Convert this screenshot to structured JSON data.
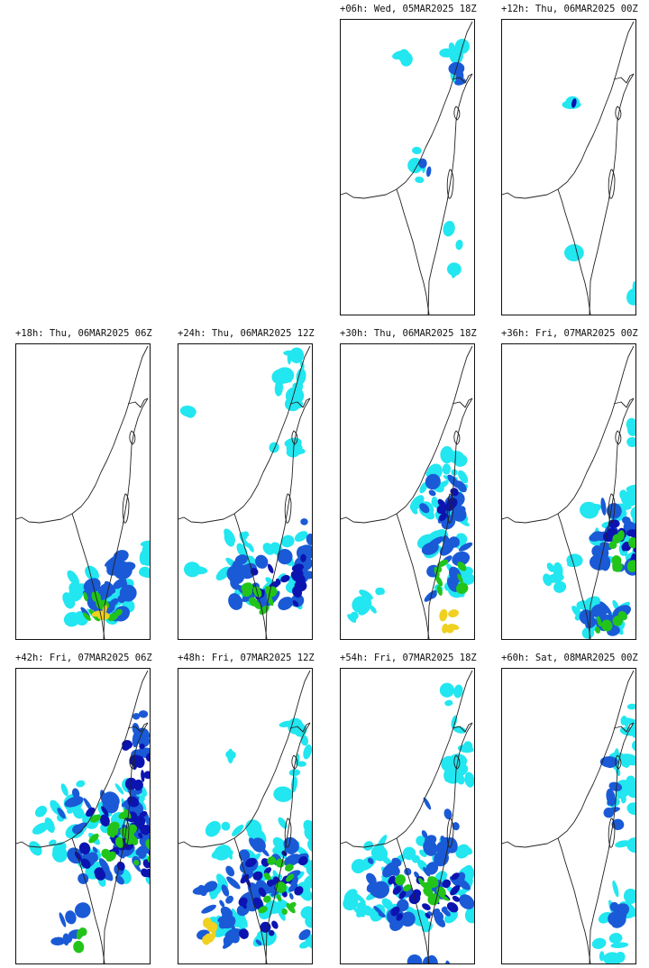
{
  "colors": {
    "light": "#22e6f0",
    "mid": "#1a5ad6",
    "dark": "#0b14b0",
    "heavy": "#22c41a",
    "extreme": "#f0d020",
    "coast": "#222222",
    "frame": "#111111"
  },
  "panels": [
    {
      "title": "+06h: Wed, 05MAR2025 18Z",
      "intensity": "weak-north"
    },
    {
      "title": "+12h: Thu, 06MAR2025 00Z",
      "intensity": "minimal"
    },
    {
      "title": "+18h: Thu, 06MAR2025 06Z",
      "intensity": "south-light"
    },
    {
      "title": "+24h: Thu, 06MAR2025 12Z",
      "intensity": "south-moderate"
    },
    {
      "title": "+30h: Thu, 06MAR2025 18Z",
      "intensity": "central-bands"
    },
    {
      "title": "+36h: Fri, 07MAR2025 00Z",
      "intensity": "east-heavy"
    },
    {
      "title": "+42h: Fri, 07MAR2025 06Z",
      "intensity": "widespread-heavy"
    },
    {
      "title": "+48h: Fri, 07MAR2025 12Z",
      "intensity": "widespread-bands"
    },
    {
      "title": "+54h: Fri, 07MAR2025 18Z",
      "intensity": "south-bands"
    },
    {
      "title": "+60h: Sat, 08MAR2025 00Z",
      "intensity": "north-light"
    }
  ]
}
